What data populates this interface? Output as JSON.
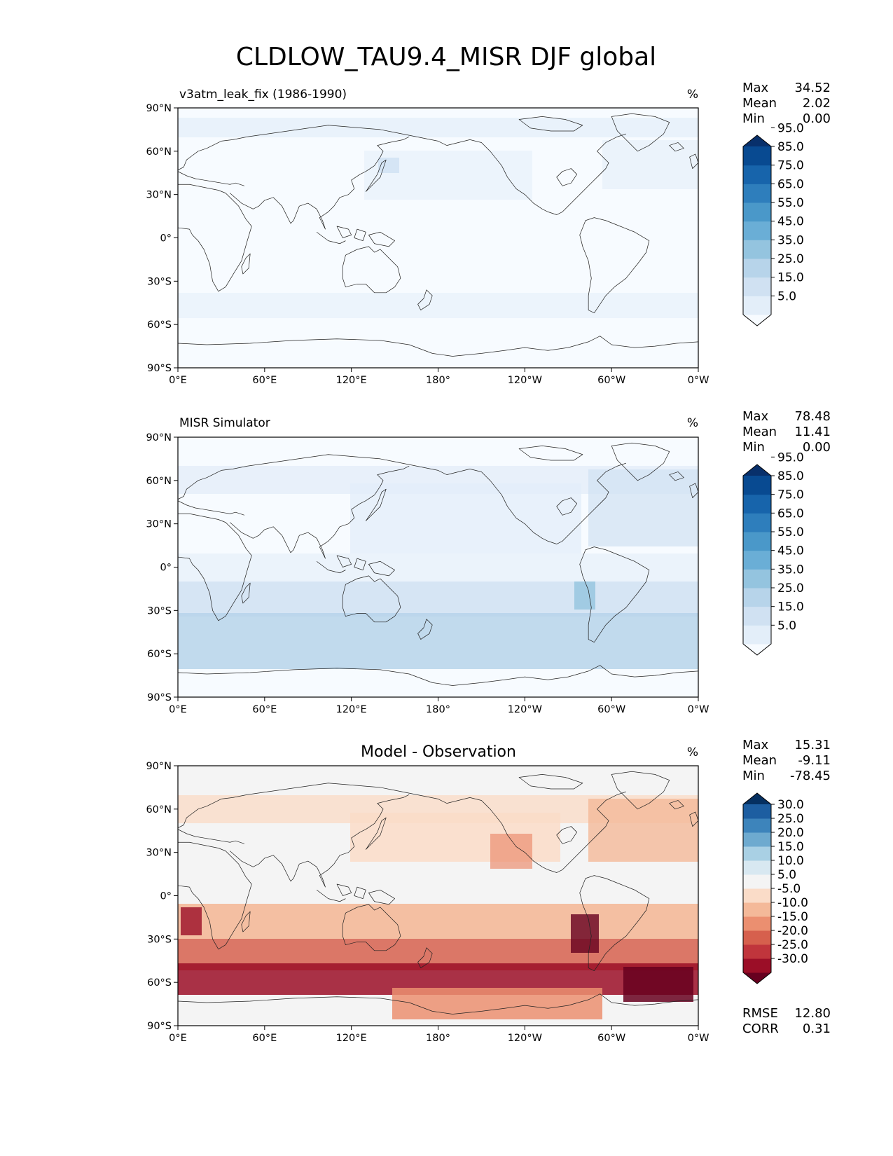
{
  "figure_title": "CLDLOW_TAU9.4_MISR DJF global",
  "chart_data": [
    {
      "type": "heatmap",
      "name": "model",
      "title_left": "v3atm_leak_fix (1986-1990)",
      "title_center": "",
      "units": "%",
      "stats": [
        {
          "label": "Max",
          "value": "34.52"
        },
        {
          "label": "Mean",
          "value": "2.02"
        },
        {
          "label": "Min",
          "value": "0.00"
        }
      ],
      "colorbar_ticks": [
        "5.0",
        "15.0",
        "25.0",
        "35.0",
        "45.0",
        "55.0",
        "65.0",
        "75.0",
        "85.0",
        "95.0"
      ],
      "colorbar_colors": [
        "#f7fbff",
        "#e3eef9",
        "#d0e1f2",
        "#b7d4ea",
        "#94c4df",
        "#6aaed6",
        "#4a98c9",
        "#2e7ebc",
        "#1764ab",
        "#084a91",
        "#08306b"
      ],
      "xticks": [
        "0°E",
        "60°E",
        "120°E",
        "180°",
        "120°W",
        "60°W",
        "0°W"
      ],
      "yticks": [
        "90°N",
        "60°N",
        "30°N",
        "0°",
        "30°S",
        "60°S",
        "90°S"
      ],
      "xlim": [
        0,
        360
      ],
      "ylim": [
        -90,
        90
      ],
      "extra_stats": []
    },
    {
      "type": "heatmap",
      "name": "observation",
      "title_left": "MISR Simulator",
      "title_center": "",
      "units": "%",
      "stats": [
        {
          "label": "Max",
          "value": "78.48"
        },
        {
          "label": "Mean",
          "value": "11.41"
        },
        {
          "label": "Min",
          "value": "0.00"
        }
      ],
      "colorbar_ticks": [
        "5.0",
        "15.0",
        "25.0",
        "35.0",
        "45.0",
        "55.0",
        "65.0",
        "75.0",
        "85.0",
        "95.0"
      ],
      "colorbar_colors": [
        "#f7fbff",
        "#e3eef9",
        "#d0e1f2",
        "#b7d4ea",
        "#94c4df",
        "#6aaed6",
        "#4a98c9",
        "#2e7ebc",
        "#1764ab",
        "#084a91",
        "#08306b"
      ],
      "xticks": [
        "0°E",
        "60°E",
        "120°E",
        "180°",
        "120°W",
        "60°W",
        "0°W"
      ],
      "yticks": [
        "90°N",
        "60°N",
        "30°N",
        "0°",
        "30°S",
        "60°S",
        "90°S"
      ],
      "xlim": [
        0,
        360
      ],
      "ylim": [
        -90,
        90
      ],
      "extra_stats": []
    },
    {
      "type": "heatmap",
      "name": "difference",
      "title_left": "",
      "title_center": "Model - Observation",
      "units": "%",
      "stats": [
        {
          "label": "Max",
          "value": "15.31"
        },
        {
          "label": "Mean",
          "value": "-9.11"
        },
        {
          "label": "Min",
          "value": "-78.45"
        }
      ],
      "colorbar_ticks": [
        "-30.0",
        "-25.0",
        "-20.0",
        "-15.0",
        "-10.0",
        "-5.0",
        "5.0",
        "10.0",
        "15.0",
        "20.0",
        "25.0",
        "30.0"
      ],
      "colorbar_colors": [
        "#67001f",
        "#9b0e27",
        "#c0353c",
        "#d6604d",
        "#eb8f70",
        "#f4b999",
        "#fadcc8",
        "#f4f4f4",
        "#d8e8f1",
        "#a9d0e4",
        "#6eaacf",
        "#3d84bb",
        "#1d5ea1",
        "#053061"
      ],
      "xticks": [
        "0°E",
        "60°E",
        "120°E",
        "180°",
        "120°W",
        "60°W",
        "0°W"
      ],
      "yticks": [
        "90°N",
        "60°N",
        "30°N",
        "0°",
        "30°S",
        "60°S",
        "90°S"
      ],
      "xlim": [
        0,
        360
      ],
      "ylim": [
        -90,
        90
      ],
      "extra_stats": [
        {
          "label": "RMSE",
          "value": "12.80"
        },
        {
          "label": "CORR",
          "value": "0.31"
        }
      ]
    }
  ]
}
